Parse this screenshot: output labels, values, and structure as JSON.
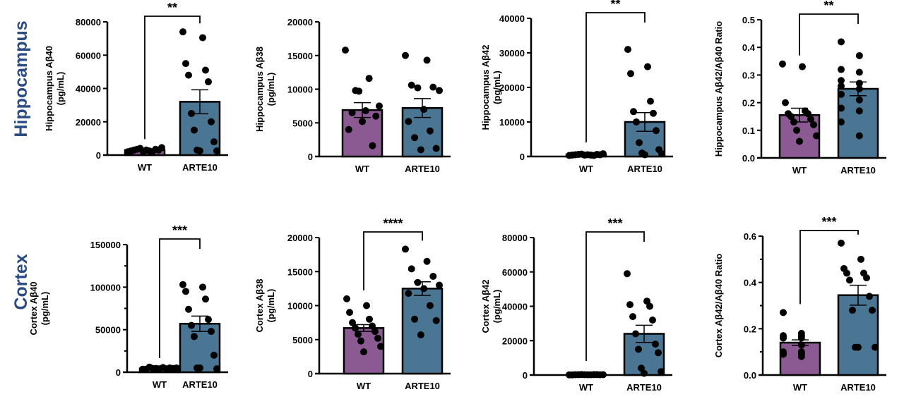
{
  "colors": {
    "WT": "#8b5a92",
    "ARTE10": "#4a7593",
    "row_title": "#2b4c85"
  },
  "row_titles": [
    "Hippocampus",
    "Cortex"
  ],
  "chart_data": [
    {
      "type": "bar",
      "ylabel": [
        "Hippocampus Aβ40",
        "(pg/mL)"
      ],
      "ylim": [
        0,
        80000
      ],
      "yticks": [
        "0",
        "20000",
        "40000",
        "60000",
        "80000"
      ],
      "categories": [
        "WT",
        "ARTE10"
      ],
      "significance": "**",
      "series": [
        {
          "name": "WT",
          "mean": 3000,
          "sem": 400,
          "points": [
            2000,
            2500,
            3000,
            3500,
            4000,
            4500,
            3000,
            2500,
            2000,
            3500,
            3000,
            2000
          ]
        },
        {
          "name": "ARTE10",
          "mean": 32000,
          "sem": 7200,
          "points": [
            74000,
            70500,
            55000,
            51000,
            48000,
            44000,
            25000,
            20000,
            15000,
            8000,
            3000,
            2500,
            2500
          ]
        }
      ]
    },
    {
      "type": "bar",
      "ylabel": [
        "Hippocampus Aβ38",
        "(pg/mL)"
      ],
      "ylim": [
        0,
        20000
      ],
      "yticks": [
        "0",
        "5000",
        "10000",
        "15000",
        "20000"
      ],
      "categories": [
        "WT",
        "ARTE10"
      ],
      "significance": "",
      "series": [
        {
          "name": "WT",
          "mean": 6900,
          "sem": 1100,
          "points": [
            15800,
            11600,
            9800,
            7500,
            6800,
            6500,
            6000,
            5200,
            4000,
            1600,
            9700
          ]
        },
        {
          "name": "ARTE10",
          "mean": 7200,
          "sem": 1400,
          "points": [
            15000,
            14300,
            10600,
            10300,
            10200,
            9800,
            7000,
            5200,
            3800,
            2800,
            1200,
            1000
          ]
        }
      ]
    },
    {
      "type": "bar",
      "ylabel": [
        "Hippocampus Aβ42",
        "(pg/mL)"
      ],
      "ylim": [
        0,
        40000
      ],
      "yticks": [
        "0",
        "10000",
        "20000",
        "30000",
        "40000"
      ],
      "categories": [
        "WT",
        "ARTE10"
      ],
      "significance": "**",
      "series": [
        {
          "name": "WT",
          "mean": 500,
          "sem": 80,
          "points": [
            300,
            400,
            500,
            600,
            700,
            800,
            500,
            400,
            300,
            600,
            500,
            400
          ]
        },
        {
          "name": "ARTE10",
          "mean": 10000,
          "sem": 2700,
          "points": [
            31000,
            26000,
            24000,
            16000,
            13000,
            12500,
            10000,
            7500,
            4000,
            2000,
            1000,
            800,
            500
          ]
        }
      ]
    },
    {
      "type": "bar",
      "ylabel": [
        "Hippocampus Aβ42/Aβ40 Ratio"
      ],
      "ylim": [
        0,
        0.5
      ],
      "yticks": [
        "0.0",
        "0.1",
        "0.2",
        "0.3",
        "0.4",
        "0.5"
      ],
      "categories": [
        "WT",
        "ARTE10"
      ],
      "significance": "**",
      "series": [
        {
          "name": "WT",
          "mean": 0.155,
          "sem": 0.025,
          "points": [
            0.34,
            0.33,
            0.2,
            0.17,
            0.16,
            0.16,
            0.15,
            0.14,
            0.13,
            0.12,
            0.1,
            0.08,
            0.06
          ]
        },
        {
          "name": "ARTE10",
          "mean": 0.25,
          "sem": 0.025,
          "points": [
            0.42,
            0.37,
            0.32,
            0.31,
            0.28,
            0.27,
            0.26,
            0.25,
            0.23,
            0.21,
            0.18,
            0.17,
            0.13,
            0.08
          ]
        }
      ]
    },
    {
      "type": "bar",
      "ylabel": [
        "Cortex Aβ40",
        "(pg/mL)"
      ],
      "ylim": [
        0,
        150000
      ],
      "yticks": [
        "0",
        "50000",
        "100000",
        "150000"
      ],
      "categories": [
        "WT",
        "ARTE10"
      ],
      "significance": "***",
      "series": [
        {
          "name": "WT",
          "mean": 4500,
          "sem": 400,
          "points": [
            3500,
            4000,
            4500,
            5000,
            5500,
            6000,
            4500,
            4000,
            3500,
            5000,
            4500
          ]
        },
        {
          "name": "ARTE10",
          "mean": 57000,
          "sem": 9000,
          "points": [
            103000,
            100000,
            95000,
            86000,
            74000,
            62000,
            55000,
            48000,
            42000,
            20000,
            5000,
            4000,
            5000
          ]
        }
      ]
    },
    {
      "type": "bar",
      "ylabel": [
        "Cortex Aβ38",
        "(pg/mL)"
      ],
      "ylim": [
        0,
        20000
      ],
      "yticks": [
        "0",
        "5000",
        "10000",
        "15000",
        "20000"
      ],
      "categories": [
        "WT",
        "ARTE10"
      ],
      "significance": "****",
      "series": [
        {
          "name": "WT",
          "mean": 6700,
          "sem": 500,
          "points": [
            11000,
            10000,
            9000,
            8000,
            7500,
            7000,
            6700,
            6200,
            5800,
            5200,
            4800,
            4000,
            3200
          ]
        },
        {
          "name": "ARTE10",
          "mean": 12500,
          "sem": 1000,
          "points": [
            18300,
            16500,
            15400,
            14300,
            13400,
            13000,
            12500,
            11800,
            10000,
            8000,
            7800,
            5700
          ]
        }
      ]
    },
    {
      "type": "bar",
      "ylabel": [
        "Cortex Aβ42",
        "(pg/mL)"
      ],
      "ylim": [
        0,
        80000
      ],
      "yticks": [
        "0",
        "20000",
        "40000",
        "60000",
        "80000"
      ],
      "categories": [
        "WT",
        "ARTE10"
      ],
      "significance": "***",
      "series": [
        {
          "name": "WT",
          "mean": 200,
          "sem": 30,
          "points": [
            100,
            150,
            200,
            250,
            300,
            200,
            150,
            100,
            250,
            200,
            150,
            200
          ]
        },
        {
          "name": "ARTE10",
          "mean": 24000,
          "sem": 5000,
          "points": [
            59000,
            43000,
            41000,
            40000,
            34000,
            32000,
            24000,
            18000,
            15000,
            13000,
            4000,
            2000,
            1000
          ]
        }
      ]
    },
    {
      "type": "bar",
      "ylabel": [
        "Cortex Aβ42/Aβ40 Ratio"
      ],
      "ylim": [
        0,
        0.6
      ],
      "yticks": [
        "0.0",
        "0.2",
        "0.4",
        "0.6"
      ],
      "categories": [
        "WT",
        "ARTE10"
      ],
      "significance": "***",
      "series": [
        {
          "name": "WT",
          "mean": 0.14,
          "sem": 0.012,
          "points": [
            0.27,
            0.18,
            0.17,
            0.17,
            0.16,
            0.16,
            0.16,
            0.13,
            0.1,
            0.1,
            0.09,
            0.09,
            0.09,
            0.08
          ]
        },
        {
          "name": "ARTE10",
          "mean": 0.345,
          "sem": 0.043,
          "points": [
            0.57,
            0.5,
            0.46,
            0.44,
            0.44,
            0.42,
            0.41,
            0.34,
            0.28,
            0.28,
            0.12,
            0.12,
            0.12
          ]
        }
      ]
    }
  ]
}
